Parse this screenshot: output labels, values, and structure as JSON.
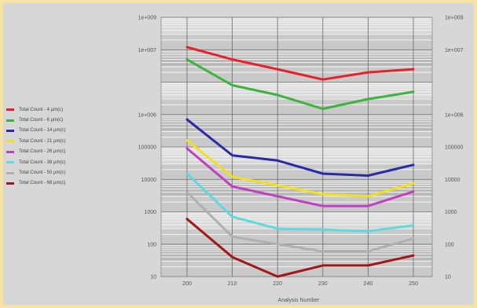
{
  "chart_data": {
    "type": "line",
    "title": "",
    "xlabel": "Analysis Number",
    "ylabel": "",
    "x": [
      200,
      210,
      220,
      230,
      240,
      250
    ],
    "x_ticks": [
      "200",
      "210",
      "220",
      "230",
      "240",
      "250"
    ],
    "y_scale": "log",
    "ylim": [
      10,
      1000000000
    ],
    "y_ticks": [
      "1e+009",
      "1e+007",
      "1e+006",
      "100000",
      "10000",
      "1000",
      "100",
      "10"
    ],
    "grid": true,
    "legend_position": "left",
    "series": [
      {
        "name": "Total Count - 4 µm(c)",
        "color": "#e8202a",
        "points": [
          [
            200,
            120000000
          ],
          [
            210,
            50000000
          ],
          [
            220,
            25000000
          ],
          [
            230,
            12000000
          ],
          [
            240,
            20000000
          ],
          [
            250,
            25000000
          ]
        ]
      },
      {
        "name": "Total Count - 6 µm(c)",
        "color": "#3cb43c",
        "points": [
          [
            200,
            50000000
          ],
          [
            210,
            8000000
          ],
          [
            220,
            4000000
          ],
          [
            230,
            1500000
          ],
          [
            240,
            3000000
          ],
          [
            250,
            5000000
          ]
        ]
      },
      {
        "name": "Total Count - 14 µm(c)",
        "color": "#2a2aa8",
        "points": [
          [
            200,
            700000
          ],
          [
            210,
            55000
          ],
          [
            220,
            38000
          ],
          [
            230,
            15000
          ],
          [
            240,
            13000
          ],
          [
            250,
            28000
          ]
        ]
      },
      {
        "name": "Total Count - 21 µm(c)",
        "color": "#f0e020",
        "points": [
          [
            200,
            160000
          ],
          [
            210,
            12000
          ],
          [
            220,
            6500
          ],
          [
            230,
            3500
          ],
          [
            240,
            3000
          ],
          [
            250,
            7500
          ]
        ]
      },
      {
        "name": "Total Count - 26 µm(c)",
        "color": "#c040c0",
        "points": [
          [
            200,
            90000
          ],
          [
            210,
            6000
          ],
          [
            220,
            3000
          ],
          [
            230,
            1500
          ],
          [
            240,
            1500
          ],
          [
            250,
            4200
          ]
        ]
      },
      {
        "name": "Total Count - 38 µm(c)",
        "color": "#60d8e0",
        "points": [
          [
            200,
            15000
          ],
          [
            210,
            700
          ],
          [
            220,
            300
          ],
          [
            230,
            280
          ],
          [
            240,
            250
          ],
          [
            250,
            380
          ]
        ]
      },
      {
        "name": "Total Count - 50 µm(c)",
        "color": "#b0b0b0",
        "points": [
          [
            200,
            4000
          ],
          [
            210,
            170
          ],
          [
            220,
            100
          ],
          [
            230,
            60
          ],
          [
            240,
            60
          ],
          [
            250,
            150
          ]
        ]
      },
      {
        "name": "Total Count - 68 µm(c)",
        "color": "#a01818",
        "points": [
          [
            200,
            600
          ],
          [
            210,
            40
          ],
          [
            220,
            10
          ],
          [
            230,
            22
          ],
          [
            240,
            22
          ],
          [
            250,
            45
          ]
        ]
      }
    ]
  }
}
